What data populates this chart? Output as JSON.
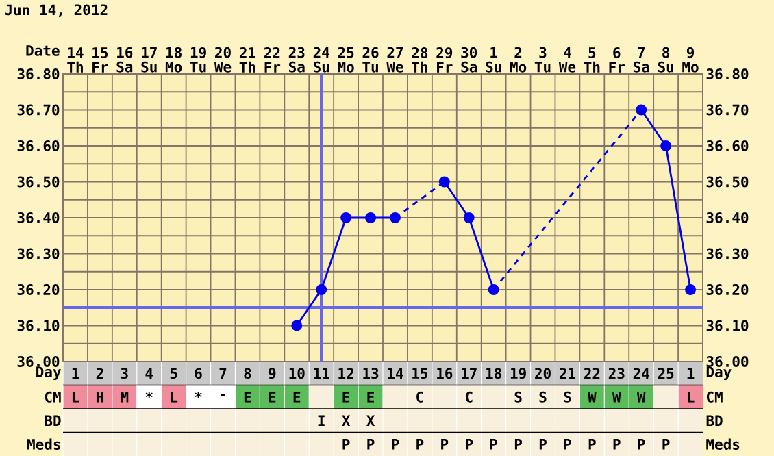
{
  "chart_data": [
    {
      "type": "line",
      "title": "Jun 14, 2012",
      "xlabel": "Date",
      "categories": [
        "14 Th",
        "15 Fr",
        "16 Sa",
        "17 Su",
        "18 Mo",
        "19 Tu",
        "20 We",
        "21 Th",
        "22 Fr",
        "23 Sa",
        "24 Su",
        "25 Mo",
        "26 Tu",
        "27 We",
        "28 Th",
        "29 Fr",
        "30 Sa",
        "1 Su",
        "2 Mo",
        "3 Tu",
        "4 We",
        "5 Th",
        "6 Fr",
        "7 Sa",
        "8 Su",
        "9 Mo"
      ],
      "values": [
        null,
        null,
        null,
        null,
        null,
        null,
        null,
        null,
        null,
        36.1,
        36.2,
        36.4,
        36.4,
        36.4,
        null,
        36.5,
        36.4,
        36.2,
        null,
        null,
        null,
        null,
        null,
        36.7,
        36.6,
        36.2
      ],
      "color": "#0000ee",
      "ylim": [
        36.0,
        36.8
      ],
      "yticks": [
        {
          "value": 36.0,
          "label": "36.00"
        },
        {
          "value": 36.1,
          "label": "36.10"
        },
        {
          "value": 36.2,
          "label": "36.20"
        },
        {
          "value": 36.3,
          "label": "36.30"
        },
        {
          "value": 36.4,
          "label": "36.40"
        },
        {
          "value": 36.5,
          "label": "36.50"
        },
        {
          "value": 36.6,
          "label": "36.60"
        },
        {
          "value": 36.7,
          "label": "36.70"
        },
        {
          "value": 36.8,
          "label": "36.80"
        }
      ],
      "y2lim": [
        36.0,
        36.8
      ],
      "y2ticks": [
        {
          "value": 36.0,
          "label": "36.00"
        },
        {
          "value": 36.1,
          "label": "36.10"
        },
        {
          "value": 36.2,
          "label": "36.20"
        },
        {
          "value": 36.3,
          "label": "36.30"
        },
        {
          "value": 36.4,
          "label": "36.40"
        },
        {
          "value": 36.5,
          "label": "36.50"
        },
        {
          "value": 36.6,
          "label": "36.60"
        },
        {
          "value": 36.7,
          "label": "36.70"
        },
        {
          "value": 36.8,
          "label": "36.80"
        }
      ],
      "grid": true,
      "marker": "circle",
      "line_style": "solid",
      "ref_lines": [
        {
          "axis": "y",
          "value": 36.15,
          "color": "#6666ee"
        },
        {
          "axis": "x",
          "value": "24 Su",
          "color": "#6666ee"
        }
      ]
    },
    {
      "type": "heatmap",
      "xlabel": "Day",
      "categories": [
        "1",
        "2",
        "3",
        "4",
        "5",
        "6",
        "7",
        "8",
        "9",
        "10",
        "11",
        "12",
        "13",
        "14",
        "15",
        "16",
        "17",
        "18",
        "19",
        "20",
        "21",
        "22",
        "23",
        "24",
        "25",
        "1"
      ],
      "y_categories": [
        "CM",
        "BD",
        "Meds"
      ],
      "y2_categories": [
        "CM",
        "BD",
        "Meds"
      ],
      "cells": [
        [
          null,
          null,
          null,
          null,
          null,
          null,
          null,
          null,
          null,
          null,
          null,
          null,
          null,
          null,
          null,
          null,
          null,
          null,
          null,
          null,
          null,
          null,
          null,
          null,
          null,
          null
        ],
        [
          null,
          null,
          null,
          null,
          null,
          null,
          null,
          null,
          null,
          null,
          null,
          null,
          null,
          null,
          null,
          null,
          null,
          null,
          null,
          null,
          null,
          null,
          null,
          null,
          null,
          null
        ],
        [
          null,
          null,
          null,
          null,
          null,
          null,
          null,
          null,
          null,
          null,
          null,
          null,
          null,
          null,
          null,
          null,
          null,
          null,
          null,
          null,
          null,
          null,
          null,
          null,
          null,
          null
        ]
      ],
      "cell_labels": [
        [
          "L",
          "H",
          "M",
          "*",
          "L",
          "*",
          "-",
          "E",
          "E",
          "E",
          null,
          "E",
          "E",
          null,
          "C",
          null,
          "C",
          null,
          "S",
          "S",
          "S",
          "W",
          "W",
          "W",
          null,
          "L"
        ],
        [
          null,
          null,
          null,
          null,
          null,
          null,
          null,
          null,
          null,
          null,
          "I",
          "X",
          "X",
          null,
          null,
          null,
          null,
          null,
          null,
          null,
          null,
          null,
          null,
          null,
          null,
          null
        ],
        [
          null,
          null,
          null,
          null,
          null,
          null,
          null,
          null,
          null,
          null,
          null,
          "P",
          "P",
          "P",
          "P",
          "P",
          "P",
          "P",
          "P",
          "P",
          "P",
          "P",
          "P",
          "P",
          "P",
          null
        ]
      ],
      "colors": [
        [
          "#f08c9c",
          "#f08c9c",
          "#f08c9c",
          "#ffffff",
          "#f08c9c",
          "#ffffff",
          "#ffffff",
          "#5cbc5c",
          "#5cbc5c",
          "#5cbc5c",
          null,
          "#5cbc5c",
          "#5cbc5c",
          null,
          null,
          null,
          null,
          null,
          null,
          null,
          null,
          "#5cbc5c",
          "#5cbc5c",
          "#5cbc5c",
          null,
          "#f08c9c"
        ],
        [
          null,
          null,
          null,
          null,
          null,
          null,
          null,
          null,
          null,
          null,
          null,
          null,
          null,
          null,
          null,
          null,
          null,
          null,
          null,
          null,
          null,
          null,
          null,
          null,
          null,
          null
        ],
        [
          null,
          null,
          null,
          null,
          null,
          null,
          null,
          null,
          null,
          null,
          null,
          null,
          null,
          null,
          null,
          null,
          null,
          null,
          null,
          null,
          null,
          null,
          null,
          null,
          null,
          null
        ]
      ]
    }
  ]
}
